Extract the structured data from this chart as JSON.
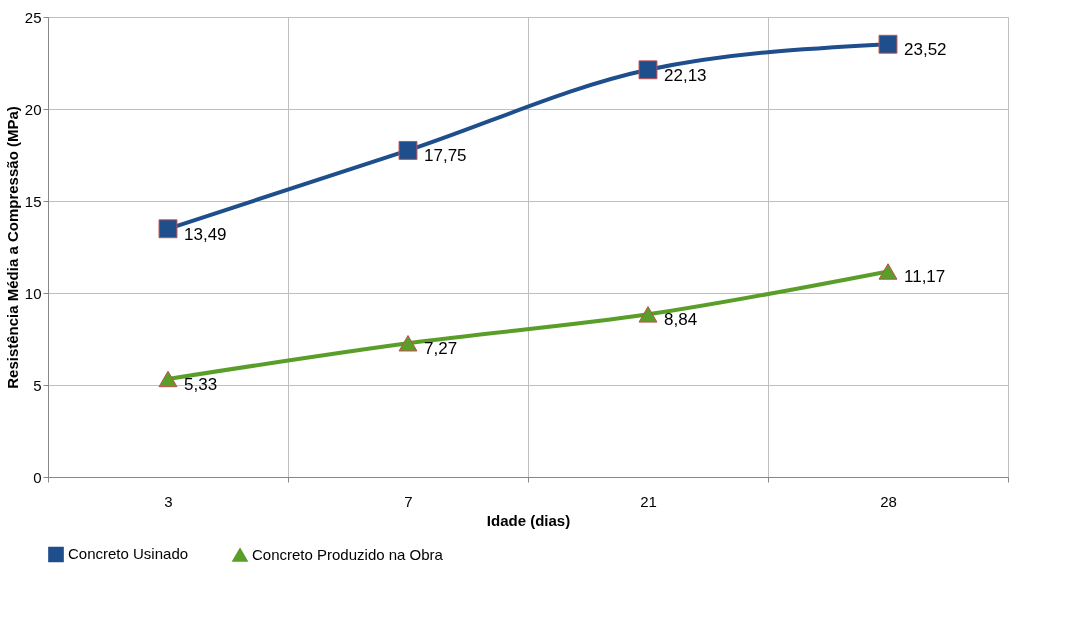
{
  "chart_data": {
    "type": "line",
    "xlabel": "Idade (dias)",
    "ylabel": "Resistência Média a Compressão (MPa)",
    "categories": [
      "3",
      "7",
      "21",
      "28"
    ],
    "series": [
      {
        "name": "Concreto Usinado",
        "color": "#1f4e8c",
        "marker": "square",
        "values": [
          13.49,
          17.75,
          22.13,
          23.52
        ],
        "value_labels": [
          "13,49",
          "17,75",
          "22,13",
          "23,52"
        ]
      },
      {
        "name": "Concreto Produzido na Obra",
        "color": "#5a9e2a",
        "marker": "triangle",
        "values": [
          5.33,
          7.27,
          8.84,
          11.17
        ],
        "value_labels": [
          "5,33",
          "7,27",
          "8,84",
          "11,17"
        ]
      }
    ],
    "ylim": [
      0,
      25
    ],
    "yticks": [
      0,
      5,
      10,
      15,
      20,
      25
    ],
    "grid": true,
    "legend": "bottom",
    "line_style": "solid"
  }
}
